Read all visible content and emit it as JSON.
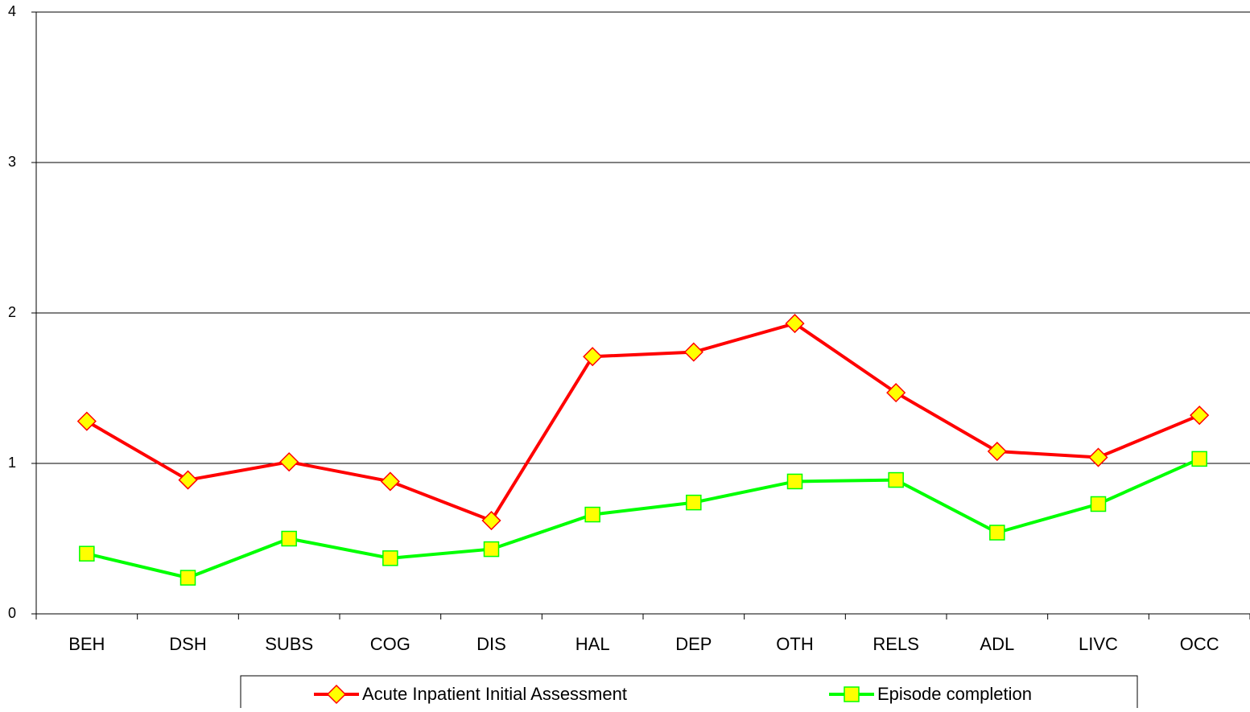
{
  "chart_data": {
    "type": "line",
    "categories": [
      "BEH",
      "DSH",
      "SUBS",
      "COG",
      "DIS",
      "HAL",
      "DEP",
      "OTH",
      "RELS",
      "ADL",
      "LIVC",
      "OCC"
    ],
    "series": [
      {
        "name": "Acute Inpatient Initial Assessment",
        "color": "#ff0000",
        "marker": "diamond",
        "marker_color": "#ffff00",
        "values": [
          1.28,
          0.89,
          1.01,
          0.88,
          0.62,
          1.71,
          1.74,
          1.93,
          1.47,
          1.08,
          1.04,
          1.32
        ]
      },
      {
        "name": "Episode completion",
        "color": "#00ff00",
        "marker": "square",
        "marker_color": "#ffff00",
        "values": [
          0.4,
          0.24,
          0.5,
          0.37,
          0.43,
          0.66,
          0.74,
          0.88,
          0.89,
          0.54,
          0.73,
          1.03
        ]
      }
    ],
    "ylim": [
      0,
      4
    ],
    "yticks": [
      0,
      1,
      2,
      3,
      4
    ],
    "grid": true,
    "legend": "bottom"
  }
}
